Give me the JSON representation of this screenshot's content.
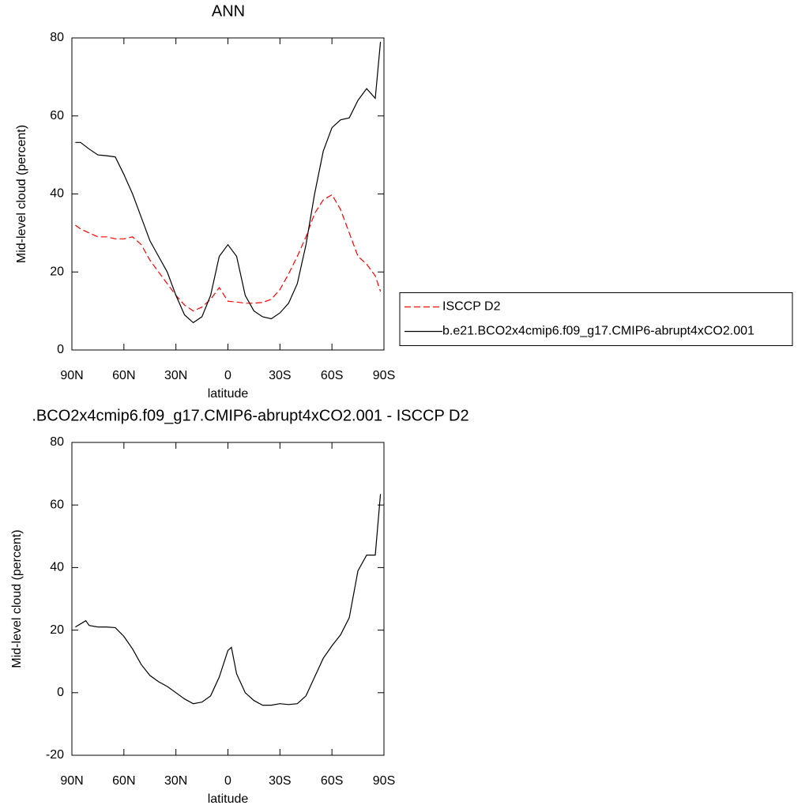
{
  "chart_data": [
    {
      "type": "line",
      "title": "ANN",
      "xlabel": "latitude",
      "ylabel": "Mid-level cloud (percent)",
      "x": [
        88,
        85,
        80,
        75,
        70,
        65,
        60,
        55,
        50,
        45,
        40,
        35,
        30,
        25,
        20,
        15,
        10,
        5,
        0,
        -5,
        -10,
        -15,
        -20,
        -25,
        -30,
        -35,
        -40,
        -45,
        -50,
        -55,
        -60,
        -65,
        -70,
        -75,
        -80,
        -85,
        -88
      ],
      "series": [
        {
          "name": "ISCCP D2",
          "color": "#ff0000",
          "dashed": true,
          "values": [
            32,
            31,
            30,
            29,
            29,
            28.5,
            28.5,
            29,
            27,
            23,
            20,
            17,
            14,
            11.5,
            10,
            11,
            13,
            16,
            12.5,
            12.3,
            12,
            12,
            12.2,
            13,
            15.5,
            19.5,
            24,
            29,
            35,
            38.5,
            39.8,
            36,
            30,
            24,
            22,
            19,
            15
          ]
        },
        {
          "name": "b.e21.BCO2x4cmip6.f09_g17.CMIP6-abrupt4xCO2.001",
          "color": "#000000",
          "dashed": false,
          "values": [
            53.2,
            53.2,
            51.5,
            50,
            49.8,
            49.5,
            45,
            40,
            34,
            28,
            24,
            20,
            14,
            9,
            7,
            8.5,
            14,
            24,
            27,
            24,
            14,
            10,
            8.5,
            8,
            9.5,
            12,
            17,
            27,
            40,
            51,
            57,
            59,
            59.5,
            64,
            67,
            64.5,
            79
          ]
        }
      ],
      "xlim": [
        90,
        -90
      ],
      "ylim": [
        0,
        80
      ],
      "xticks": [
        {
          "value": 90,
          "label": "90N"
        },
        {
          "value": 60,
          "label": "60N"
        },
        {
          "value": 30,
          "label": "30N"
        },
        0,
        {
          "value": -30,
          "label": "30S"
        },
        {
          "value": -60,
          "label": "60S"
        },
        {
          "value": -90,
          "label": "90S"
        }
      ],
      "yticks": [
        0,
        20,
        40,
        60,
        80
      ],
      "legend": "right"
    },
    {
      "type": "line",
      "title": ".BCO2x4cmip6.f09_g17.CMIP6-abrupt4xCO2.001 - ISCCP D2",
      "xlabel": "latitude",
      "ylabel": "Mid-level cloud (percent)",
      "x": [
        88,
        85,
        82,
        80,
        75,
        70,
        65,
        60,
        55,
        50,
        45,
        40,
        35,
        30,
        25,
        20,
        15,
        10,
        5,
        0,
        -2,
        -5,
        -10,
        -15,
        -20,
        -25,
        -30,
        -35,
        -40,
        -45,
        -50,
        -55,
        -60,
        -65,
        -70,
        -75,
        -80,
        -85,
        -88
      ],
      "series": [
        {
          "color": "#000000",
          "dashed": false,
          "values": [
            21,
            22,
            23,
            21.5,
            21,
            21,
            20.8,
            18,
            14,
            9,
            5.5,
            3.5,
            2,
            0,
            -2,
            -3.5,
            -3,
            -1,
            5,
            13.5,
            14.5,
            6,
            0,
            -2.5,
            -4,
            -4,
            -3.5,
            -3.8,
            -3.5,
            -1,
            5,
            11,
            15,
            18.5,
            24,
            39,
            44,
            44,
            63.5
          ]
        }
      ],
      "xlim": [
        90,
        -90
      ],
      "ylim": [
        -20,
        80
      ],
      "xticks": [
        {
          "value": 90,
          "label": "90N"
        },
        {
          "value": 60,
          "label": "60N"
        },
        {
          "value": 30,
          "label": "30N"
        },
        0,
        {
          "value": -30,
          "label": "30S"
        },
        {
          "value": -60,
          "label": "60S"
        },
        {
          "value": -90,
          "label": "90S"
        }
      ],
      "yticks": [
        -20,
        0,
        20,
        40,
        60,
        80
      ]
    }
  ]
}
